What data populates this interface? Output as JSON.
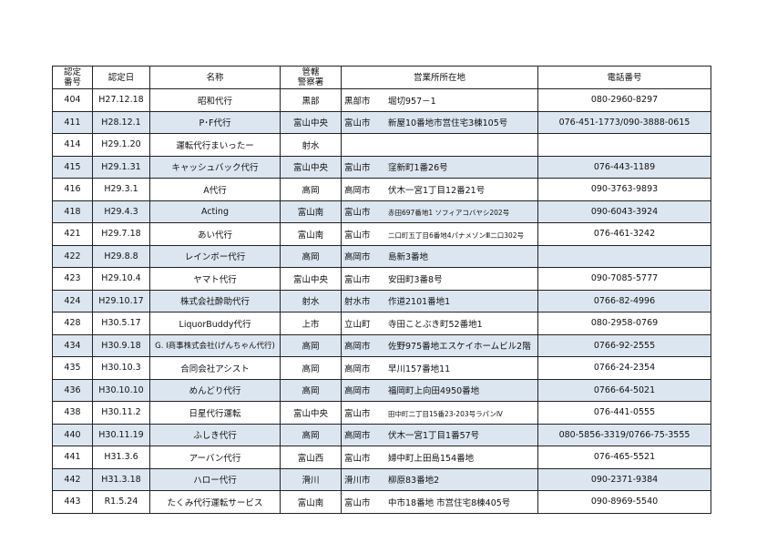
{
  "header": {
    "no": "認定\n番号",
    "date": "認定日",
    "name": "名称",
    "police": "管轄\n警察署",
    "address": "営業所所在地",
    "phone": "電話番号"
  },
  "shade_color": "#dce6f1",
  "rows": [
    {
      "no": "404",
      "date": "H27.12.18",
      "name": "昭和代行",
      "police": "黒部",
      "city": "黒部市",
      "addr": "堀切957－1",
      "phone": "080-2960-8297"
    },
    {
      "no": "411",
      "date": "H28.12.1",
      "name": "P･F代行",
      "police": "富山中央",
      "city": "富山市",
      "addr": "新屋10番地市営住宅3棟105号",
      "phone": "076-451-1773/090-3888-0615"
    },
    {
      "no": "414",
      "date": "H29.1.20",
      "name": "運転代行まいったー",
      "police": "射水",
      "city": "",
      "addr": "",
      "phone": ""
    },
    {
      "no": "415",
      "date": "H29.1.31",
      "name": "キャッシュバック代行",
      "police": "富山中央",
      "city": "富山市",
      "addr": "窪新町1番26号",
      "phone": "076-443-1189"
    },
    {
      "no": "416",
      "date": "H29.3.1",
      "name": "A代行",
      "police": "高岡",
      "city": "高岡市",
      "addr": "伏木一宮1丁目12番21号",
      "phone": "090-3763-9893"
    },
    {
      "no": "418",
      "date": "H29.4.3",
      "name": "Acting",
      "police": "富山南",
      "city": "富山市",
      "addr": "赤田697番地1 ソフィアコバヤシ202号",
      "phone": "090-6043-3924"
    },
    {
      "no": "421",
      "date": "H29.7.18",
      "name": "あい代行",
      "police": "富山南",
      "city": "富山市",
      "addr": "二口町五丁目6番地4パナメゾンⅢ二口302号",
      "phone": "076-461-3242"
    },
    {
      "no": "422",
      "date": "H29.8.8",
      "name": "レインボー代行",
      "police": "高岡",
      "city": "高岡市",
      "addr": "島新3番地",
      "phone": ""
    },
    {
      "no": "423",
      "date": "H29.10.4",
      "name": "ヤマト代行",
      "police": "富山中央",
      "city": "富山市",
      "addr": "安田町3番8号",
      "phone": "090-7085-5777"
    },
    {
      "no": "424",
      "date": "H29.10.17",
      "name": "株式会社酔助代行",
      "police": "射水",
      "city": "射水市",
      "addr": "作道2101番地1",
      "phone": "0766-82-4996"
    },
    {
      "no": "428",
      "date": "H30.5.17",
      "name": "LiquorBuddy代行",
      "police": "上市",
      "city": "立山町",
      "addr": "寺田ことぶき町52番地1",
      "phone": "080-2958-0769"
    },
    {
      "no": "434",
      "date": "H30.9.18",
      "name": "G. I商事株式会社(げんちゃん代行)",
      "police": "高岡",
      "city": "高岡市",
      "addr": "佐野975番地エスケイホームビル2階",
      "phone": "0766-92-2555"
    },
    {
      "no": "435",
      "date": "H30.10.3",
      "name": "合同会社アシスト",
      "police": "高岡",
      "city": "高岡市",
      "addr": "早川157番地11",
      "phone": "0766-24-2354"
    },
    {
      "no": "436",
      "date": "H30.10.10",
      "name": "めんどり代行",
      "police": "高岡",
      "city": "高岡市",
      "addr": "福岡町上向田4950番地",
      "phone": "0766-64-5021"
    },
    {
      "no": "438",
      "date": "H30.11.2",
      "name": "日星代行運転",
      "police": "富山中央",
      "city": "富山市",
      "addr": "田中町二丁目15番23-203号ラパンⅣ",
      "phone": "076-441-0555"
    },
    {
      "no": "440",
      "date": "H30.11.19",
      "name": "ふしき代行",
      "police": "高岡",
      "city": "高岡市",
      "addr": "伏木一宮1丁目1番57号",
      "phone": "080-5856-3319/0766-75-3555"
    },
    {
      "no": "441",
      "date": "H31.3.6",
      "name": "アーバン代行",
      "police": "富山西",
      "city": "富山市",
      "addr": "婦中町上田島154番地",
      "phone": "076-465-5521"
    },
    {
      "no": "442",
      "date": "H31.3.18",
      "name": "ハロー代行",
      "police": "滑川",
      "city": "滑川市",
      "addr": "柳原83番地2",
      "phone": "090-2371-9384"
    },
    {
      "no": "443",
      "date": "R1.5.24",
      "name": "たくみ代行運転サービス",
      "police": "富山南",
      "city": "富山市",
      "addr": "中市18番地 市営住宅8棟405号",
      "phone": "090-8969-5540"
    }
  ]
}
